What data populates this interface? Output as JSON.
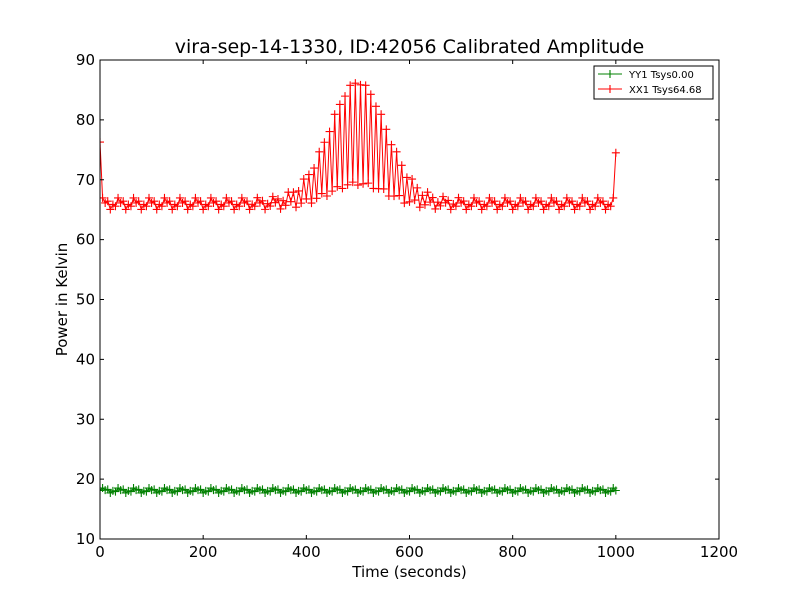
{
  "chart_data": {
    "type": "line",
    "title": "vira-sep-14-1330, ID:42056 Calibrated Amplitude",
    "xlabel": "Time (seconds)",
    "ylabel": "Power in Kelvin",
    "xlim": [
      0,
      1200
    ],
    "ylim": [
      10,
      90
    ],
    "x_ticks": [
      0,
      200,
      400,
      600,
      800,
      1000,
      1200
    ],
    "y_ticks": [
      10,
      20,
      30,
      40,
      50,
      60,
      70,
      80,
      90
    ],
    "grid": false,
    "legend_position": "top-right",
    "series": [
      {
        "name": "YY1 Tsys0.00",
        "color": "#008000",
        "marker": "+",
        "x_range": [
          0,
          1000
        ],
        "x_step": 5,
        "baseline": 18.1,
        "ripple": 0.3,
        "start_value": 18.1,
        "end_value": 18.1
      },
      {
        "name": "XX1 Tsys64.68",
        "color": "#ff0000",
        "marker": "+",
        "x_range": [
          0,
          1000
        ],
        "x_step": 5,
        "baseline": 66.0,
        "ripple": 0.7,
        "start_value": 76.3,
        "end_value": 74.5,
        "peak_center": 500,
        "peak_width": 55,
        "peak_height": 20
      }
    ]
  }
}
